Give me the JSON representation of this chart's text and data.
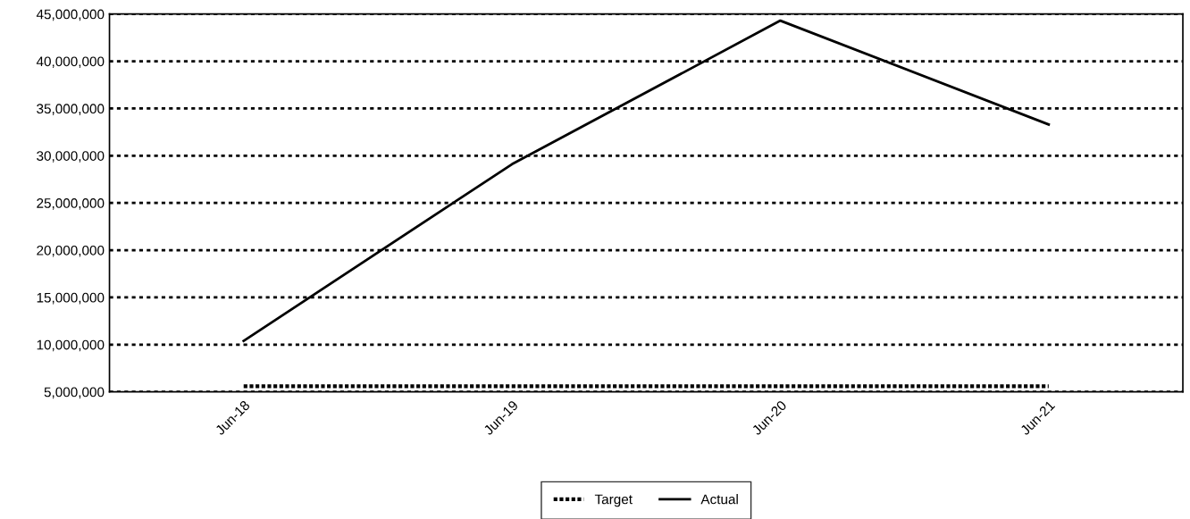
{
  "chart_data": {
    "type": "line",
    "categories": [
      "Jun-18",
      "Jun-19",
      "Jun-20",
      "Jun-21"
    ],
    "series": [
      {
        "name": "Target",
        "color": "#000000",
        "line_style": "dotted",
        "values": [
          5600000,
          5600000,
          5600000,
          5600000
        ]
      },
      {
        "name": "Actual",
        "color": "#000000",
        "line_style": "solid",
        "values": [
          10400000,
          29100000,
          44300000,
          33300000
        ]
      }
    ],
    "ylim": [
      5000000,
      45000000
    ],
    "yticks": [
      {
        "value": 5000000,
        "label": "5,000,000"
      },
      {
        "value": 10000000,
        "label": "10,000,000"
      },
      {
        "value": 15000000,
        "label": "15,000,000"
      },
      {
        "value": 20000000,
        "label": "20,000,000"
      },
      {
        "value": 25000000,
        "label": "25,000,000"
      },
      {
        "value": 30000000,
        "label": "30,000,000"
      },
      {
        "value": 35000000,
        "label": "35,000,000"
      },
      {
        "value": 40000000,
        "label": "40,000,000"
      },
      {
        "value": 45000000,
        "label": "45,000,000"
      }
    ],
    "grid": "y",
    "legend": "bottom",
    "marker": "none"
  }
}
